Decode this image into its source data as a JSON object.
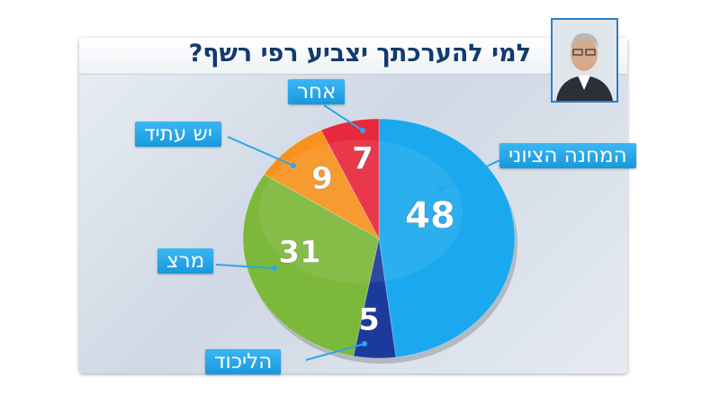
{
  "chart_data": {
    "type": "pie",
    "title": "למי להערכתך יצביע רפי רשף?",
    "categories": [
      "המחנה הציוני",
      "הליכוד",
      "מרצ",
      "יש עתיד",
      "אחר"
    ],
    "values": [
      48,
      5,
      31,
      9,
      7
    ],
    "colors": [
      "#1aa9ee",
      "#1b3a9c",
      "#7cb83a",
      "#f7921e",
      "#e8283c"
    ]
  }
}
